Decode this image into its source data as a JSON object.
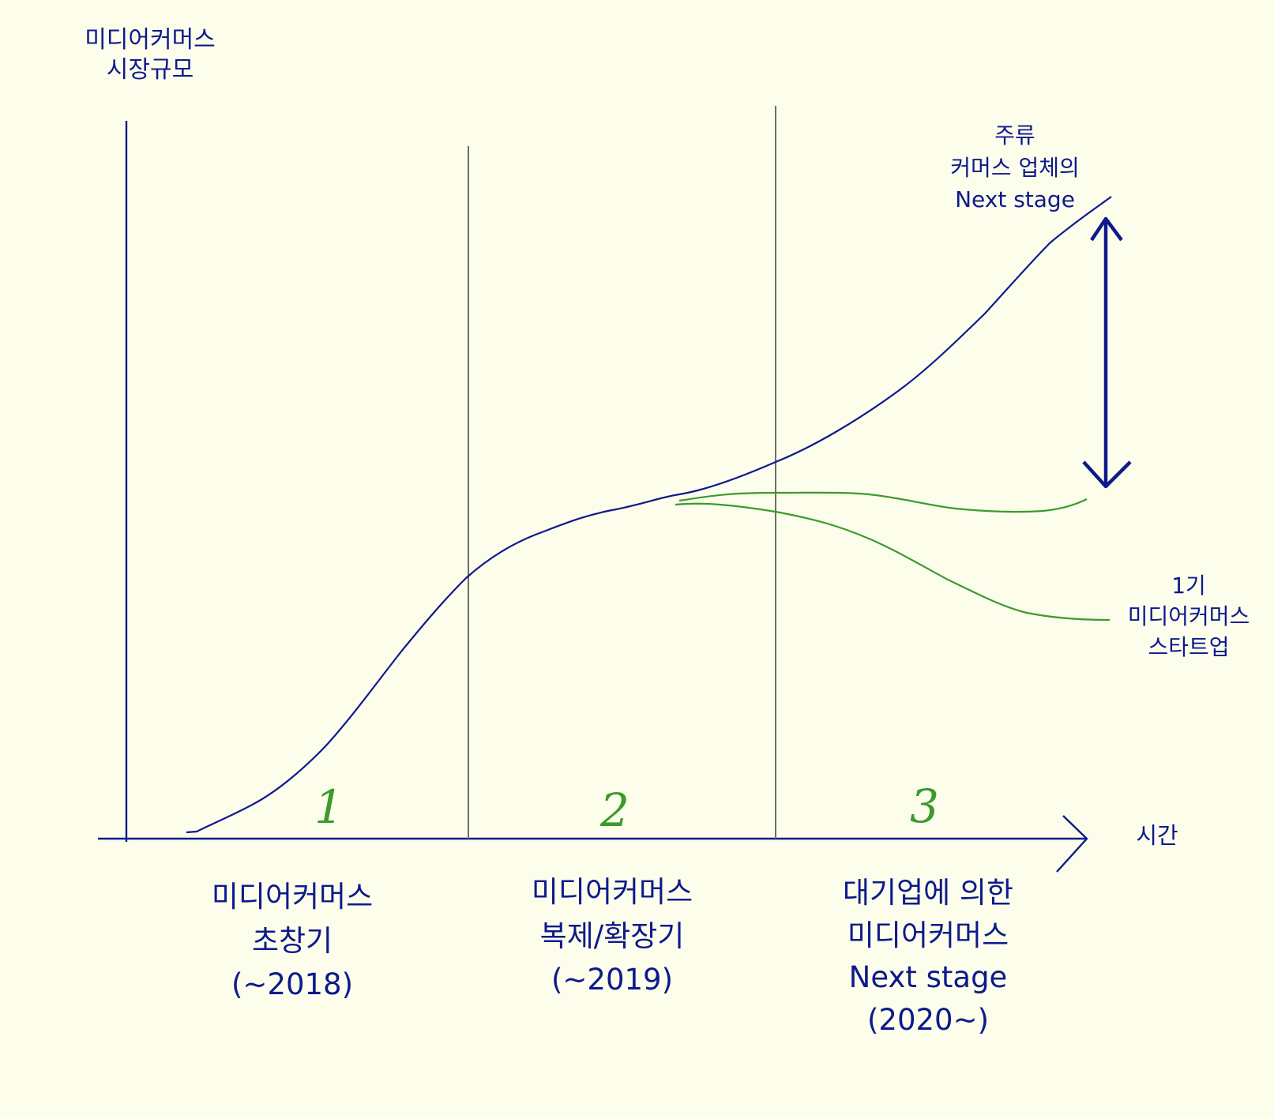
{
  "colors": {
    "background": "#fdfdec",
    "ink_blue": "#0d1a8c",
    "ink_green": "#3c9a2c",
    "divider_gray": "#6b6e6b"
  },
  "y_axis_label": [
    "미디어커머스",
    "시장규모"
  ],
  "x_axis_label": "시간",
  "phase_numbers": [
    "1",
    "2",
    "3"
  ],
  "phases": [
    {
      "lines": [
        "미디어커머스",
        "초창기",
        "(~2018)"
      ]
    },
    {
      "lines": [
        "미디어커머스",
        "복제/확장기",
        "(~2019)"
      ]
    },
    {
      "lines": [
        "대기업에 의한",
        "미디어커머스",
        "Next stage",
        "(2020~)"
      ]
    }
  ],
  "curve_labels": {
    "mainstream": [
      "주류",
      "커머스 업체의",
      "Next stage"
    ],
    "startups": [
      "1기",
      "미디어커머스",
      "스타트업"
    ]
  }
}
